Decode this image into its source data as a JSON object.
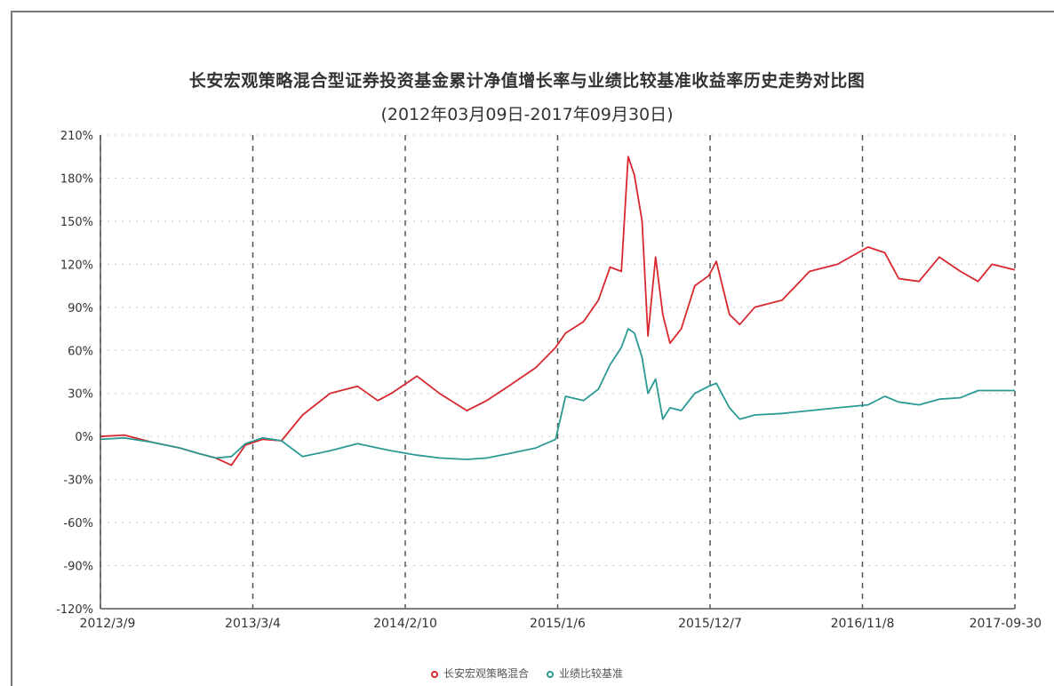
{
  "chart_data": {
    "type": "line",
    "title": "长安宏观策略混合型证券投资基金累计净值增长率与业绩比较基准收益率历史走势对比图",
    "subtitle": "(2012年03月09日-2017年09月30日)",
    "xlabel": "",
    "ylabel": "",
    "ylim": [
      -120,
      210
    ],
    "y_ticks": [
      "210%",
      "180%",
      "150%",
      "120%",
      "90%",
      "60%",
      "30%",
      "0%",
      "-30%",
      "-60%",
      "-90%",
      "-120%"
    ],
    "x_ticks": [
      "2012/3/9",
      "2013/3/4",
      "2014/2/10",
      "2015/1/6",
      "2015/12/7",
      "2016/11/8",
      "2017-09-30"
    ],
    "grid": true,
    "legend_position": "bottom-center",
    "series": [
      {
        "name": "长安宏观策略混合",
        "color": "#d9272e",
        "x": [
          "2012-03-09",
          "2012-05-01",
          "2012-07-01",
          "2012-09-01",
          "2012-10-15",
          "2012-11-20",
          "2012-12-25",
          "2013-01-25",
          "2013-03-04",
          "2013-04-15",
          "2013-06-01",
          "2013-08-01",
          "2013-10-01",
          "2013-11-15",
          "2013-12-15",
          "2014-02-10",
          "2014-04-01",
          "2014-06-01",
          "2014-07-15",
          "2014-09-01",
          "2014-11-01",
          "2014-12-15",
          "2015-01-06",
          "2015-02-15",
          "2015-03-20",
          "2015-04-15",
          "2015-05-10",
          "2015-05-25",
          "2015-06-08",
          "2015-06-25",
          "2015-07-08",
          "2015-07-25",
          "2015-08-10",
          "2015-08-26",
          "2015-09-20",
          "2015-10-20",
          "2015-11-20",
          "2015-12-07",
          "2016-01-05",
          "2016-01-28",
          "2016-03-01",
          "2016-05-01",
          "2016-07-01",
          "2016-09-01",
          "2016-11-08",
          "2016-12-15",
          "2017-01-15",
          "2017-03-01",
          "2017-04-15",
          "2017-06-01",
          "2017-07-10",
          "2017-08-10",
          "2017-09-30"
        ],
        "values": [
          0,
          1,
          -4,
          -8,
          -12,
          -15,
          -20,
          -6,
          -2,
          -3,
          15,
          30,
          35,
          25,
          30,
          42,
          30,
          18,
          25,
          35,
          48,
          62,
          72,
          80,
          95,
          118,
          115,
          195,
          182,
          150,
          70,
          125,
          85,
          65,
          75,
          105,
          112,
          122,
          85,
          78,
          90,
          95,
          115,
          120,
          132,
          128,
          110,
          108,
          125,
          115,
          108,
          120,
          116
        ]
      },
      {
        "name": "业绩比较基准",
        "color": "#2a9a94",
        "x": [
          "2012-03-09",
          "2012-05-01",
          "2012-07-01",
          "2012-09-01",
          "2012-10-15",
          "2012-11-20",
          "2012-12-25",
          "2013-01-25",
          "2013-03-04",
          "2013-04-15",
          "2013-06-01",
          "2013-08-01",
          "2013-10-01",
          "2013-11-15",
          "2013-12-15",
          "2014-02-10",
          "2014-04-01",
          "2014-06-01",
          "2014-07-15",
          "2014-09-01",
          "2014-11-01",
          "2014-12-15",
          "2015-01-06",
          "2015-02-15",
          "2015-03-20",
          "2015-04-15",
          "2015-05-10",
          "2015-05-25",
          "2015-06-08",
          "2015-06-25",
          "2015-07-08",
          "2015-07-25",
          "2015-08-10",
          "2015-08-26",
          "2015-09-20",
          "2015-10-20",
          "2015-11-20",
          "2015-12-07",
          "2016-01-05",
          "2016-01-28",
          "2016-03-01",
          "2016-05-01",
          "2016-07-01",
          "2016-09-01",
          "2016-11-08",
          "2016-12-15",
          "2017-01-15",
          "2017-03-01",
          "2017-04-15",
          "2017-06-01",
          "2017-07-10",
          "2017-08-10",
          "2017-09-30"
        ],
        "values": [
          -2,
          -1,
          -4,
          -8,
          -12,
          -15,
          -14,
          -5,
          -1,
          -3,
          -14,
          -10,
          -5,
          -8,
          -10,
          -13,
          -15,
          -16,
          -15,
          -12,
          -8,
          -2,
          28,
          25,
          33,
          50,
          62,
          75,
          72,
          55,
          30,
          40,
          12,
          20,
          18,
          30,
          35,
          37,
          20,
          12,
          15,
          16,
          18,
          20,
          22,
          28,
          24,
          22,
          26,
          27,
          32,
          32,
          32
        ]
      }
    ]
  }
}
